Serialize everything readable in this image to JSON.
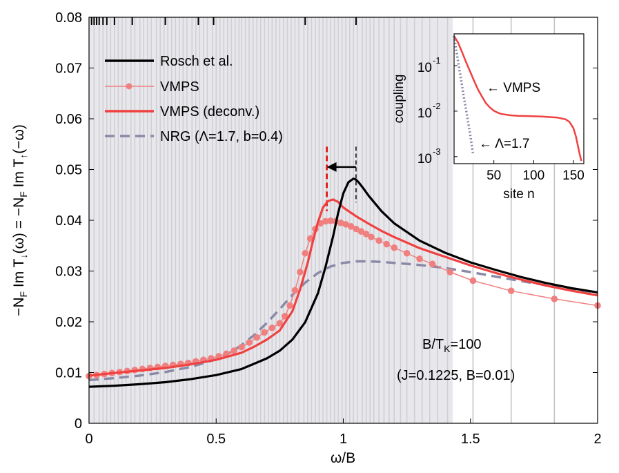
{
  "chart_data": [
    {
      "type": "line",
      "xlabel": "ω/B",
      "ylabel": "−N_F Im T_↓(ω) = −N_F Im T_↑(−ω)",
      "xlim": [
        0,
        2
      ],
      "ylim": [
        0,
        0.08
      ],
      "x_ticks": [
        "0",
        "0.5",
        "1",
        "1.5",
        "2"
      ],
      "y_ticks": [
        "0",
        "0.01",
        "0.02",
        "0.03",
        "0.04",
        "0.05",
        "0.06",
        "0.07",
        "0.08"
      ],
      "grid": false,
      "legend_position": "top-left",
      "shaded_region": [
        0,
        1.43
      ],
      "vertical_lines": [
        0.02,
        0.04,
        0.055,
        0.07,
        0.085,
        0.1,
        0.115,
        0.13,
        0.145,
        0.165,
        0.18,
        0.2,
        0.215,
        0.23,
        0.245,
        0.265,
        0.28,
        0.295,
        0.31,
        0.325,
        0.34,
        0.355,
        0.37,
        0.385,
        0.405,
        0.42,
        0.435,
        0.45,
        0.465,
        0.485,
        0.5,
        0.515,
        0.53,
        0.545,
        0.56,
        0.575,
        0.59,
        0.6,
        0.615,
        0.63,
        0.645,
        0.66,
        0.675,
        0.69,
        0.705,
        0.72,
        0.735,
        0.75,
        0.765,
        0.78,
        0.795,
        0.81,
        0.825,
        0.845,
        0.86,
        0.875,
        0.89,
        0.905,
        0.92,
        0.935,
        0.95,
        0.965,
        0.98,
        0.995,
        1.01,
        1.025,
        1.04,
        1.055,
        1.075,
        1.09,
        1.105,
        1.12,
        1.14,
        1.16,
        1.18,
        1.2,
        1.225,
        1.25,
        1.28,
        1.31,
        1.34,
        1.37,
        1.41,
        1.51,
        1.66,
        1.83
      ],
      "top_ticks": [
        0.01,
        0.02,
        0.03,
        0.04,
        0.055,
        0.07,
        0.1,
        0.17,
        0.3,
        0.43,
        0.49,
        0.85,
        1.05
      ],
      "series": [
        {
          "name": "Rosch et al.",
          "color": "#000000",
          "style": "solid",
          "x": [
            0,
            0.1,
            0.2,
            0.3,
            0.4,
            0.5,
            0.6,
            0.7,
            0.75,
            0.8,
            0.85,
            0.9,
            0.93,
            0.96,
            0.98,
            1.0,
            1.02,
            1.04,
            1.05,
            1.06,
            1.08,
            1.1,
            1.15,
            1.2,
            1.3,
            1.4,
            1.5,
            1.6,
            1.7,
            1.8,
            1.9,
            2.0
          ],
          "values": [
            0.0072,
            0.0074,
            0.0077,
            0.0081,
            0.0087,
            0.0095,
            0.0107,
            0.0128,
            0.0143,
            0.0165,
            0.0199,
            0.0256,
            0.0308,
            0.0369,
            0.0415,
            0.0453,
            0.0475,
            0.0482,
            0.048,
            0.0475,
            0.0462,
            0.0448,
            0.0418,
            0.0394,
            0.036,
            0.0336,
            0.0317,
            0.0302,
            0.0288,
            0.0276,
            0.0266,
            0.0258
          ]
        },
        {
          "name": "VMPS",
          "color": "#f08080",
          "style": "solid-markers",
          "x": [
            0,
            0.03,
            0.06,
            0.09,
            0.12,
            0.15,
            0.18,
            0.21,
            0.24,
            0.27,
            0.3,
            0.33,
            0.36,
            0.39,
            0.42,
            0.45,
            0.48,
            0.51,
            0.54,
            0.57,
            0.6,
            0.63,
            0.66,
            0.69,
            0.72,
            0.75,
            0.77,
            0.79,
            0.81,
            0.83,
            0.85,
            0.87,
            0.89,
            0.91,
            0.93,
            0.95,
            0.97,
            0.99,
            1.01,
            1.03,
            1.05,
            1.07,
            1.09,
            1.11,
            1.14,
            1.17,
            1.2,
            1.25,
            1.3,
            1.35,
            1.42,
            1.51,
            1.66,
            1.83,
            2.0
          ],
          "values": [
            0.0093,
            0.0095,
            0.0097,
            0.0099,
            0.0101,
            0.0103,
            0.0105,
            0.0107,
            0.0109,
            0.0111,
            0.0113,
            0.0115,
            0.0117,
            0.0119,
            0.0122,
            0.0125,
            0.0128,
            0.0132,
            0.0137,
            0.0143,
            0.015,
            0.0159,
            0.0169,
            0.0179,
            0.0188,
            0.0197,
            0.0211,
            0.0232,
            0.0262,
            0.0298,
            0.0335,
            0.0364,
            0.0383,
            0.0394,
            0.0398,
            0.0399,
            0.0398,
            0.0395,
            0.0392,
            0.0388,
            0.0383,
            0.0378,
            0.0373,
            0.0367,
            0.036,
            0.0353,
            0.0346,
            0.0335,
            0.0324,
            0.0314,
            0.0298,
            0.0281,
            0.0261,
            0.0245,
            0.0232
          ]
        },
        {
          "name": "VMPS (deconv.)",
          "color": "#f04040",
          "style": "solid",
          "x": [
            0,
            0.1,
            0.2,
            0.3,
            0.4,
            0.5,
            0.6,
            0.65,
            0.7,
            0.75,
            0.8,
            0.83,
            0.86,
            0.88,
            0.9,
            0.92,
            0.94,
            0.96,
            0.98,
            1.0,
            1.05,
            1.1,
            1.15,
            1.2,
            1.3,
            1.4,
            1.5,
            1.6,
            1.7,
            1.8,
            1.9,
            2.0
          ],
          "values": [
            0.0094,
            0.0099,
            0.0104,
            0.0109,
            0.0116,
            0.0125,
            0.0139,
            0.0151,
            0.0165,
            0.0183,
            0.0221,
            0.0264,
            0.0316,
            0.0358,
            0.0396,
            0.0425,
            0.0438,
            0.0441,
            0.0436,
            0.0425,
            0.0408,
            0.0393,
            0.0379,
            0.0367,
            0.0345,
            0.0328,
            0.0311,
            0.0296,
            0.0283,
            0.0271,
            0.0261,
            0.0252
          ]
        },
        {
          "name": "NRG (Λ=1.7, b=0.4)",
          "color": "#8a8aa8",
          "style": "dashed",
          "x": [
            0,
            0.1,
            0.2,
            0.3,
            0.4,
            0.5,
            0.55,
            0.6,
            0.65,
            0.7,
            0.75,
            0.8,
            0.85,
            0.9,
            0.95,
            1.0,
            1.05,
            1.1,
            1.15,
            1.2,
            1.3,
            1.4,
            1.5,
            1.6,
            1.7,
            1.8,
            1.9,
            2.0
          ],
          "values": [
            0.0085,
            0.0089,
            0.0094,
            0.0101,
            0.0111,
            0.0126,
            0.0138,
            0.0154,
            0.0174,
            0.0198,
            0.0225,
            0.0253,
            0.0277,
            0.0296,
            0.0309,
            0.0316,
            0.0319,
            0.0319,
            0.0318,
            0.0316,
            0.0312,
            0.0306,
            0.0298,
            0.0289,
            0.028,
            0.0272,
            0.0264,
            0.0257
          ]
        }
      ],
      "markers": {
        "red_dashed_x": 0.935,
        "black_dashed_x": 1.05,
        "arrow_from": 1.05,
        "arrow_to": 0.935,
        "arrow_y": 0.0505
      },
      "annotation_line1": "B/T",
      "annotation_sub": "K",
      "annotation_line1_rest": "=100",
      "annotation_line2": "(J=0.1225, B=0.01)"
    },
    {
      "type": "line",
      "xlabel": "site n",
      "ylabel": "coupling",
      "xlim": [
        0,
        163
      ],
      "ylim": [
        0.0007,
        0.5
      ],
      "log_y": true,
      "x_ticks": [
        "50",
        "100",
        "150"
      ],
      "y_tick_values": [
        0.001,
        0.01,
        0.1
      ],
      "y_tick_labels": [
        "10",
        "10",
        "10"
      ],
      "y_tick_exponents": [
        "-3",
        "-2",
        "-1"
      ],
      "series": [
        {
          "name": "VMPS",
          "color": "#f04040",
          "style": "solid",
          "x": [
            0,
            5,
            10,
            15,
            20,
            25,
            30,
            35,
            40,
            45,
            50,
            55,
            60,
            70,
            80,
            90,
            100,
            110,
            120,
            130,
            140,
            145,
            150,
            153,
            156,
            158,
            160
          ],
          "values": [
            0.45,
            0.32,
            0.2,
            0.12,
            0.075,
            0.047,
            0.03,
            0.021,
            0.015,
            0.012,
            0.0102,
            0.0092,
            0.0086,
            0.0081,
            0.0079,
            0.0078,
            0.0077,
            0.0076,
            0.0074,
            0.0072,
            0.0066,
            0.0058,
            0.0042,
            0.0028,
            0.0016,
            0.0011,
            0.0008
          ]
        },
        {
          "name": "Λ=1.7",
          "color": "#8a8aa8",
          "style": "dotted",
          "x": [
            0,
            4,
            8,
            12,
            16,
            20,
            22,
            24
          ],
          "values": [
            0.45,
            0.16,
            0.06,
            0.022,
            0.0085,
            0.0032,
            0.0019,
            0.0011
          ]
        }
      ],
      "label_vmps": "← VMPS",
      "label_lambda": "← Λ=1.7"
    }
  ],
  "legend": {
    "entries": [
      "Rosch et al.",
      "VMPS",
      "VMPS (deconv.)",
      "NRG (Λ=1.7, b=0.4)"
    ]
  }
}
